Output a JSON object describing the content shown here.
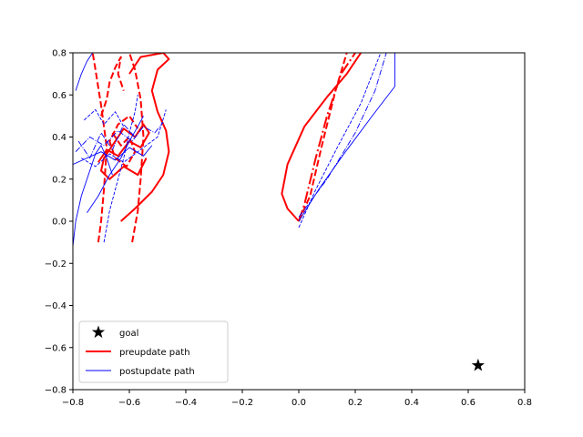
{
  "chart_data": {
    "type": "line",
    "title": "",
    "xlabel": "",
    "ylabel": "",
    "xlim": [
      -0.8,
      0.8
    ],
    "ylim": [
      -0.8,
      0.8
    ],
    "xticks": [
      -0.8,
      -0.6,
      -0.4,
      -0.2,
      0.0,
      0.2,
      0.4,
      0.6,
      0.8
    ],
    "yticks": [
      -0.8,
      -0.6,
      -0.4,
      -0.2,
      0.0,
      0.2,
      0.4,
      0.6,
      0.8
    ],
    "xtick_labels": [
      "−0.8",
      "−0.6",
      "−0.4",
      "−0.2",
      "0.0",
      "0.2",
      "0.4",
      "0.6",
      "0.8"
    ],
    "ytick_labels": [
      "−0.8",
      "−0.6",
      "−0.4",
      "−0.2",
      "0.0",
      "0.2",
      "0.4",
      "0.6",
      "0.8"
    ],
    "grid": false,
    "legend_placement": "lower-left",
    "colors": {
      "preupdate": "#ff0000",
      "postupdate": "#0000ff",
      "goal": "#000000"
    },
    "goal": {
      "label": "goal",
      "x": 0.635,
      "y": -0.685,
      "marker": "star"
    },
    "legend": [
      {
        "label": "goal",
        "marker": "star",
        "color": "#000000"
      },
      {
        "label": "preupdate path",
        "line": "solid",
        "color": "#ff0000"
      },
      {
        "label": "postupdate path",
        "line": "solid",
        "color": "#0000ff"
      }
    ],
    "series": [
      {
        "name": "preupdate path",
        "group": "preupdate",
        "style": "solid",
        "x": [
          0.0,
          -0.04,
          -0.06,
          -0.04,
          0.02,
          0.1,
          0.17,
          0.22
        ],
        "y": [
          0.0,
          0.06,
          0.13,
          0.27,
          0.45,
          0.59,
          0.7,
          0.8
        ]
      },
      {
        "group": "preupdate",
        "style": "dashdot",
        "x": [
          0.0,
          0.02,
          0.06,
          0.1,
          0.15,
          0.2
        ],
        "y": [
          0.0,
          0.08,
          0.3,
          0.5,
          0.7,
          0.8
        ]
      },
      {
        "group": "preupdate",
        "style": "dashed",
        "x": [
          0.0,
          0.04,
          0.08,
          0.13,
          0.17
        ],
        "y": [
          0.0,
          0.12,
          0.35,
          0.62,
          0.8
        ]
      },
      {
        "group": "preupdate",
        "style": "solid",
        "x": [
          -0.63,
          -0.58,
          -0.52,
          -0.48,
          -0.46,
          -0.47,
          -0.5,
          -0.52,
          -0.5,
          -0.46,
          -0.48,
          -0.56,
          -0.6
        ],
        "y": [
          0.0,
          0.06,
          0.14,
          0.22,
          0.33,
          0.43,
          0.52,
          0.62,
          0.72,
          0.77,
          0.8,
          0.78,
          0.7
        ]
      },
      {
        "group": "preupdate",
        "style": "dashed",
        "x": [
          -0.59,
          -0.57,
          -0.56,
          -0.55,
          -0.56,
          -0.58,
          -0.6
        ],
        "y": [
          -0.1,
          0.05,
          0.2,
          0.4,
          0.58,
          0.72,
          0.8
        ]
      },
      {
        "group": "preupdate",
        "style": "dashed",
        "x": [
          -0.71,
          -0.7,
          -0.69,
          -0.68,
          -0.7,
          -0.72,
          -0.73
        ],
        "y": [
          -0.1,
          0.0,
          0.15,
          0.35,
          0.55,
          0.72,
          0.8
        ]
      },
      {
        "group": "preupdate",
        "style": "solid",
        "x": [
          -0.71,
          -0.68,
          -0.64,
          -0.6,
          -0.56,
          -0.53,
          -0.55,
          -0.58,
          -0.62,
          -0.66,
          -0.69,
          -0.7,
          -0.67,
          -0.62,
          -0.57,
          -0.54
        ],
        "y": [
          0.28,
          0.34,
          0.31,
          0.38,
          0.35,
          0.42,
          0.46,
          0.4,
          0.44,
          0.36,
          0.3,
          0.24,
          0.2,
          0.26,
          0.22,
          0.3
        ]
      },
      {
        "group": "preupdate",
        "style": "dashed",
        "x": [
          -0.66,
          -0.63,
          -0.6,
          -0.58,
          -0.61,
          -0.65,
          -0.67,
          -0.64,
          -0.6,
          -0.57
        ],
        "y": [
          0.42,
          0.36,
          0.4,
          0.33,
          0.26,
          0.3,
          0.38,
          0.46,
          0.5,
          0.44
        ]
      },
      {
        "group": "preupdate",
        "style": "dashed",
        "x": [
          -0.7,
          -0.68,
          -0.67,
          -0.65,
          -0.63,
          -0.64,
          -0.62
        ],
        "y": [
          0.5,
          0.58,
          0.66,
          0.73,
          0.78,
          0.7,
          0.62
        ]
      },
      {
        "name": "postupdate path",
        "group": "postupdate",
        "style": "solid",
        "x": [
          0.0,
          0.07,
          0.16,
          0.26,
          0.34,
          0.34
        ],
        "y": [
          0.0,
          0.15,
          0.32,
          0.5,
          0.64,
          0.8
        ]
      },
      {
        "group": "postupdate",
        "style": "dashdot",
        "x": [
          0.0,
          0.1,
          0.2,
          0.27,
          0.31
        ],
        "y": [
          0.02,
          0.2,
          0.42,
          0.62,
          0.8
        ]
      },
      {
        "group": "postupdate",
        "style": "dashed",
        "x": [
          0.0,
          0.06,
          0.14,
          0.22,
          0.29
        ],
        "y": [
          -0.03,
          0.15,
          0.36,
          0.56,
          0.8
        ]
      },
      {
        "group": "postupdate",
        "style": "solid",
        "x": [
          -0.8,
          -0.79,
          -0.77,
          -0.74,
          -0.72,
          -0.7,
          -0.68,
          -0.66
        ],
        "y": [
          -0.12,
          0.0,
          0.12,
          0.24,
          0.32,
          0.36,
          0.3,
          0.22
        ]
      },
      {
        "group": "postupdate",
        "style": "solid",
        "x": [
          -0.8,
          -0.75,
          -0.7,
          -0.65,
          -0.6,
          -0.55,
          -0.52
        ],
        "y": [
          0.27,
          0.3,
          0.33,
          0.29,
          0.35,
          0.31,
          0.36
        ]
      },
      {
        "group": "postupdate",
        "style": "dashdot",
        "x": [
          -0.79,
          -0.74,
          -0.69,
          -0.64,
          -0.59,
          -0.55,
          -0.51,
          -0.48
        ],
        "y": [
          0.33,
          0.4,
          0.36,
          0.43,
          0.38,
          0.45,
          0.42,
          0.47
        ]
      },
      {
        "group": "postupdate",
        "style": "dashed",
        "x": [
          -0.77,
          -0.72,
          -0.67,
          -0.62,
          -0.56,
          -0.5,
          -0.47
        ],
        "y": [
          0.3,
          0.26,
          0.32,
          0.28,
          0.34,
          0.4,
          0.53
        ]
      },
      {
        "group": "postupdate",
        "style": "solid",
        "x": [
          -0.75,
          -0.71,
          -0.67,
          -0.63,
          -0.6,
          -0.57,
          -0.55
        ],
        "y": [
          0.04,
          0.12,
          0.22,
          0.3,
          0.38,
          0.45,
          0.5
        ]
      },
      {
        "group": "postupdate",
        "style": "dashed",
        "x": [
          -0.69,
          -0.67,
          -0.64,
          -0.62,
          -0.6,
          -0.58,
          -0.57
        ],
        "y": [
          -0.1,
          0.05,
          0.2,
          0.3,
          0.42,
          0.52,
          0.6
        ]
      },
      {
        "group": "postupdate",
        "style": "dashdot",
        "x": [
          -0.78,
          -0.74,
          -0.7,
          -0.66,
          -0.62,
          -0.58
        ],
        "y": [
          0.38,
          0.3,
          0.42,
          0.34,
          0.46,
          0.4
        ]
      },
      {
        "group": "postupdate",
        "style": "solid",
        "x": [
          -0.79,
          -0.77,
          -0.75,
          -0.73
        ],
        "y": [
          0.62,
          0.7,
          0.76,
          0.8
        ]
      },
      {
        "group": "postupdate",
        "style": "dashed",
        "x": [
          -0.76,
          -0.72,
          -0.69,
          -0.65,
          -0.62
        ],
        "y": [
          0.48,
          0.53,
          0.46,
          0.52,
          0.45
        ]
      }
    ]
  }
}
